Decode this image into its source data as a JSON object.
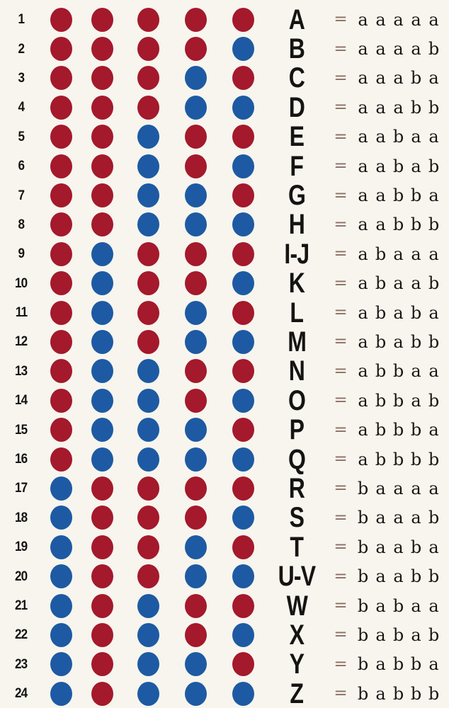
{
  "palette": {
    "background": "#f7f5ee",
    "dot_a_red": "#a4192b",
    "dot_b_blue": "#1d5aa3",
    "ink": "#161412",
    "equals": "#8e6e64"
  },
  "symbols": {
    "equals": "="
  },
  "rows": [
    {
      "number": "1",
      "letter": "A",
      "code": "aaaaa"
    },
    {
      "number": "2",
      "letter": "B",
      "code": "aaaab"
    },
    {
      "number": "3",
      "letter": "C",
      "code": "aaaba"
    },
    {
      "number": "4",
      "letter": "D",
      "code": "aaabb"
    },
    {
      "number": "5",
      "letter": "E",
      "code": "aabaa"
    },
    {
      "number": "6",
      "letter": "F",
      "code": "aabab"
    },
    {
      "number": "7",
      "letter": "G",
      "code": "aabba"
    },
    {
      "number": "8",
      "letter": "H",
      "code": "aabbb"
    },
    {
      "number": "9",
      "letter": "I-J",
      "code": "abaaa"
    },
    {
      "number": "10",
      "letter": "K",
      "code": "abaab"
    },
    {
      "number": "11",
      "letter": "L",
      "code": "ababa"
    },
    {
      "number": "12",
      "letter": "M",
      "code": "ababb"
    },
    {
      "number": "13",
      "letter": "N",
      "code": "abbaa"
    },
    {
      "number": "14",
      "letter": "O",
      "code": "abbab"
    },
    {
      "number": "15",
      "letter": "P",
      "code": "abbba"
    },
    {
      "number": "16",
      "letter": "Q",
      "code": "abbbb"
    },
    {
      "number": "17",
      "letter": "R",
      "code": "baaaa"
    },
    {
      "number": "18",
      "letter": "S",
      "code": "baaab"
    },
    {
      "number": "19",
      "letter": "T",
      "code": "baaba"
    },
    {
      "number": "20",
      "letter": "U-V",
      "code": "baabb"
    },
    {
      "number": "21",
      "letter": "W",
      "code": "babaa"
    },
    {
      "number": "22",
      "letter": "X",
      "code": "babab"
    },
    {
      "number": "23",
      "letter": "Y",
      "code": "babba"
    },
    {
      "number": "24",
      "letter": "Z",
      "code": "babbb"
    }
  ]
}
